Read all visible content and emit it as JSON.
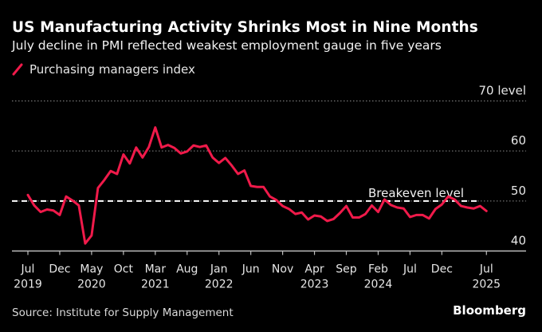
{
  "header": {
    "title": "US Manufacturing Activity Shrinks Most in Nine Months",
    "subtitle": "July decline in PMI reflected weakest employment gauge in five years"
  },
  "legend": {
    "items": [
      {
        "label": "Purchasing managers index",
        "color": "#f01a4a",
        "icon": "slash-line-icon"
      }
    ]
  },
  "footer": {
    "source": "Source: Institute for Supply Management",
    "brand": "Bloomberg"
  },
  "chart_data": {
    "type": "line",
    "title": "US Manufacturing Activity Shrinks Most in Nine Months",
    "subtitle": "July decline in PMI reflected weakest employment gauge in five years",
    "xlabel": "",
    "ylabel": "",
    "ylim": [
      40,
      70
    ],
    "y_ticks": [
      {
        "value": 70,
        "label": "70 level"
      },
      {
        "value": 60,
        "label": "60"
      },
      {
        "value": 50,
        "label": "50"
      },
      {
        "value": 40,
        "label": "40"
      }
    ],
    "grid": true,
    "legend_position": "top-left",
    "reference_lines": [
      {
        "value": 50,
        "label": "Breakeven level",
        "style": "dashed"
      }
    ],
    "x_start": "2019-07",
    "x_end": "2025-07",
    "x_ticks": [
      {
        "month_index": 0,
        "label": "Jul",
        "year": "2019"
      },
      {
        "month_index": 5,
        "label": "Dec",
        "year": ""
      },
      {
        "month_index": 10,
        "label": "May",
        "year": "2020"
      },
      {
        "month_index": 15,
        "label": "Oct",
        "year": ""
      },
      {
        "month_index": 20,
        "label": "Mar",
        "year": "2021"
      },
      {
        "month_index": 25,
        "label": "Aug",
        "year": ""
      },
      {
        "month_index": 30,
        "label": "Jan",
        "year": "2022"
      },
      {
        "month_index": 35,
        "label": "Jun",
        "year": ""
      },
      {
        "month_index": 40,
        "label": "Nov",
        "year": ""
      },
      {
        "month_index": 45,
        "label": "Apr",
        "year": "2023"
      },
      {
        "month_index": 50,
        "label": "Sep",
        "year": ""
      },
      {
        "month_index": 55,
        "label": "Feb",
        "year": "2024"
      },
      {
        "month_index": 60,
        "label": "Jul",
        "year": ""
      },
      {
        "month_index": 65,
        "label": "Dec",
        "year": ""
      },
      {
        "month_index": 72,
        "label": "Jul",
        "year": "2025"
      }
    ],
    "series": [
      {
        "name": "Purchasing managers index",
        "color": "#f01a4a",
        "values": [
          51.2,
          49.1,
          47.8,
          48.3,
          48.1,
          47.2,
          50.9,
          50.1,
          49.1,
          41.5,
          43.1,
          52.6,
          54.2,
          56.0,
          55.4,
          59.3,
          57.5,
          60.7,
          58.7,
          60.8,
          64.7,
          60.7,
          61.2,
          60.6,
          59.5,
          59.9,
          61.1,
          60.8,
          61.1,
          58.7,
          57.6,
          58.6,
          57.1,
          55.4,
          56.1,
          53.0,
          52.8,
          52.8,
          50.9,
          50.2,
          49.0,
          48.4,
          47.4,
          47.7,
          46.3,
          47.1,
          46.9,
          46.0,
          46.4,
          47.6,
          49.0,
          46.7,
          46.7,
          47.4,
          49.1,
          47.8,
          50.3,
          49.2,
          48.7,
          48.5,
          46.8,
          47.2,
          47.2,
          46.5,
          48.4,
          49.3,
          50.9,
          50.3,
          49.0,
          48.7,
          48.5,
          49.0,
          48.0
        ]
      }
    ]
  }
}
